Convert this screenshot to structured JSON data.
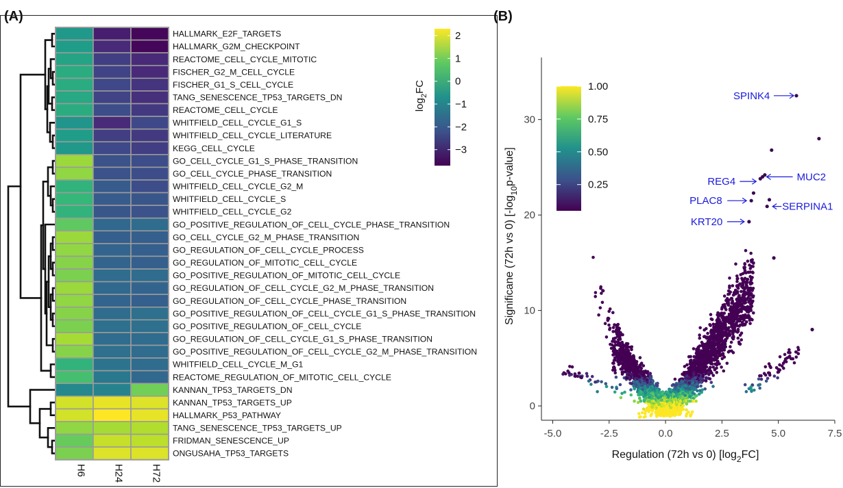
{
  "chart_data": [
    {
      "type": "heatmap",
      "panel_label": "(A)",
      "columns": [
        "H6",
        "H24",
        "H72"
      ],
      "colorbar": {
        "title": "log2FC",
        "ticks": [
          2,
          1,
          0,
          -1,
          -2,
          -3
        ],
        "range": [
          -3.7,
          2.3
        ]
      },
      "rows": [
        {
          "name": "HALLMARK_E2F_TARGETS",
          "values": [
            -0.5,
            -3.2,
            -3.6
          ]
        },
        {
          "name": "HALLMARK_G2M_CHECKPOINT",
          "values": [
            -0.4,
            -3.0,
            -3.6
          ]
        },
        {
          "name": "REACTOME_CELL_CYCLE_MITOTIC",
          "values": [
            -0.2,
            -2.6,
            -3.0
          ]
        },
        {
          "name": "FISCHER_G2_M_CELL_CYCLE",
          "values": [
            0.0,
            -2.5,
            -3.0
          ]
        },
        {
          "name": "FISCHER_G1_S_CELL_CYCLE",
          "values": [
            0.0,
            -2.4,
            -2.8
          ]
        },
        {
          "name": "TANG_SENESCENCE_TP53_TARGETS_DN",
          "values": [
            -0.1,
            -2.5,
            -2.9
          ]
        },
        {
          "name": "REACTOME_CELL_CYCLE",
          "values": [
            0.0,
            -2.3,
            -2.7
          ]
        },
        {
          "name": "WHITFIELD_CELL_CYCLE_G1_S",
          "values": [
            -0.6,
            -3.0,
            -2.4
          ]
        },
        {
          "name": "WHITFIELD_CELL_CYCLE_LITERATURE",
          "values": [
            -0.4,
            -2.6,
            -2.7
          ]
        },
        {
          "name": "KEGG_CELL_CYCLE",
          "values": [
            -0.5,
            -2.4,
            -2.6
          ]
        },
        {
          "name": "GO_CELL_CYCLE_G1_S_PHASE_TRANSITION",
          "values": [
            1.4,
            -2.2,
            -2.3
          ]
        },
        {
          "name": "GO_CELL_CYCLE_PHASE_TRANSITION",
          "values": [
            1.3,
            -2.2,
            -2.3
          ]
        },
        {
          "name": "WHITFIELD_CELL_CYCLE_G2_M",
          "values": [
            0.2,
            -2.0,
            -2.3
          ]
        },
        {
          "name": "WHITFIELD_CELL_CYCLE_S",
          "values": [
            0.3,
            -2.0,
            -2.1
          ]
        },
        {
          "name": "WHITFIELD_CELL_CYCLE_G2",
          "values": [
            0.2,
            -2.1,
            -2.2
          ]
        },
        {
          "name": "GO_POSITIVE_REGULATION_OF_CELL_CYCLE_PHASE_TRANSITION",
          "values": [
            0.8,
            -1.7,
            -1.6
          ]
        },
        {
          "name": "GO_CELL_CYCLE_G2_M_PHASE_TRANSITION",
          "values": [
            1.4,
            -1.9,
            -1.9
          ]
        },
        {
          "name": "GO_REGULATION_OF_CELL_CYCLE_PROCESS",
          "values": [
            1.3,
            -1.8,
            -1.9
          ]
        },
        {
          "name": "GO_REGULATION_OF_MITOTIC_CELL_CYCLE",
          "values": [
            1.2,
            -1.8,
            -1.9
          ]
        },
        {
          "name": "GO_POSITIVE_REGULATION_OF_MITOTIC_CELL_CYCLE",
          "values": [
            1.1,
            -1.6,
            -1.6
          ]
        },
        {
          "name": "GO_REGULATION_OF_CELL_CYCLE_G2_M_PHASE_TRANSITION",
          "values": [
            1.4,
            -1.7,
            -1.8
          ]
        },
        {
          "name": "GO_REGULATION_OF_CELL_CYCLE_PHASE_TRANSITION",
          "values": [
            1.3,
            -1.8,
            -1.9
          ]
        },
        {
          "name": "GO_POSITIVE_REGULATION_OF_CELL_CYCLE_G1_S_PHASE_TRANSITION",
          "values": [
            1.2,
            -1.6,
            -1.5
          ]
        },
        {
          "name": "GO_POSITIVE_REGULATION_OF_CELL_CYCLE",
          "values": [
            1.1,
            -1.5,
            -1.5
          ]
        },
        {
          "name": "GO_REGULATION_OF_CELL_CYCLE_G1_S_PHASE_TRANSITION",
          "values": [
            1.5,
            -1.6,
            -1.6
          ]
        },
        {
          "name": "GO_POSITIVE_REGULATION_OF_CELL_CYCLE_G2_M_PHASE_TRANSITION",
          "values": [
            1.2,
            -1.5,
            -1.6
          ]
        },
        {
          "name": "WHITFIELD_CELL_CYCLE_M_G1",
          "values": [
            0.2,
            -1.4,
            -1.6
          ]
        },
        {
          "name": "REACTOME_REGULATION_OF_MITOTIC_CELL_CYCLE",
          "values": [
            0.5,
            -1.3,
            -1.7
          ]
        },
        {
          "name": "KANNAN_TP53_TARGETS_DN",
          "values": [
            -0.9,
            -1.0,
            1.0
          ]
        },
        {
          "name": "KANNAN_TP53_TARGETS_UP",
          "values": [
            1.9,
            2.1,
            2.0
          ]
        },
        {
          "name": "HALLMARK_P53_PATHWAY",
          "values": [
            1.9,
            2.3,
            2.1
          ]
        },
        {
          "name": "TANG_SENESCENCE_TP53_TARGETS_UP",
          "values": [
            1.3,
            1.5,
            1.6
          ]
        },
        {
          "name": "FRIDMAN_SENESCENCE_UP",
          "values": [
            0.9,
            1.8,
            1.7
          ]
        },
        {
          "name": "ONGUSAHA_TP53_TARGETS",
          "values": [
            1.1,
            2.0,
            2.0
          ]
        }
      ]
    },
    {
      "type": "scatter",
      "panel_label": "(B)",
      "xlabel_parts": [
        "Regulation (72h vs 0) [log",
        "2",
        "FC]"
      ],
      "ylabel_parts": [
        "Significane (72h vs 0) [-log",
        "10",
        "p-value]"
      ],
      "xlim": [
        -5.5,
        7.5
      ],
      "ylim": [
        -1.5,
        36.5
      ],
      "xticks": [
        "-5.0",
        "-2.5",
        "0.0",
        "2.5",
        "5.0",
        "7.5"
      ],
      "yticks": [
        "0",
        "10",
        "20",
        "30"
      ],
      "colorbar": {
        "ticks": [
          "1.00",
          "0.75",
          "0.50",
          "0.25"
        ]
      },
      "highlighted_points": [
        {
          "x": 5.8,
          "y": 32.5
        },
        {
          "x": 6.8,
          "y": 28.0
        },
        {
          "x": 4.7,
          "y": 26.8
        },
        {
          "x": 4.3,
          "y": 24.0
        },
        {
          "x": 4.2,
          "y": 23.8
        },
        {
          "x": 4.4,
          "y": 24.2
        },
        {
          "x": 3.9,
          "y": 22.3
        },
        {
          "x": 3.8,
          "y": 21.5
        },
        {
          "x": 4.6,
          "y": 21.6
        },
        {
          "x": 4.5,
          "y": 20.9
        },
        {
          "x": 3.7,
          "y": 19.3
        },
        {
          "x": 4.8,
          "y": 15.5
        },
        {
          "x": 6.5,
          "y": 8.0
        }
      ],
      "annotations": [
        {
          "label": "SPINK4",
          "x": 5.8,
          "y": 32.5
        },
        {
          "label": "MUC2",
          "x": 4.3,
          "y": 24.0
        },
        {
          "label": "REG4",
          "x": 4.2,
          "y": 23.8
        },
        {
          "label": "PLAC8",
          "x": 3.8,
          "y": 21.5
        },
        {
          "label": "SERPINA1",
          "x": 4.5,
          "y": 20.9
        },
        {
          "label": "KRT20",
          "x": 3.7,
          "y": 19.3
        }
      ]
    }
  ]
}
